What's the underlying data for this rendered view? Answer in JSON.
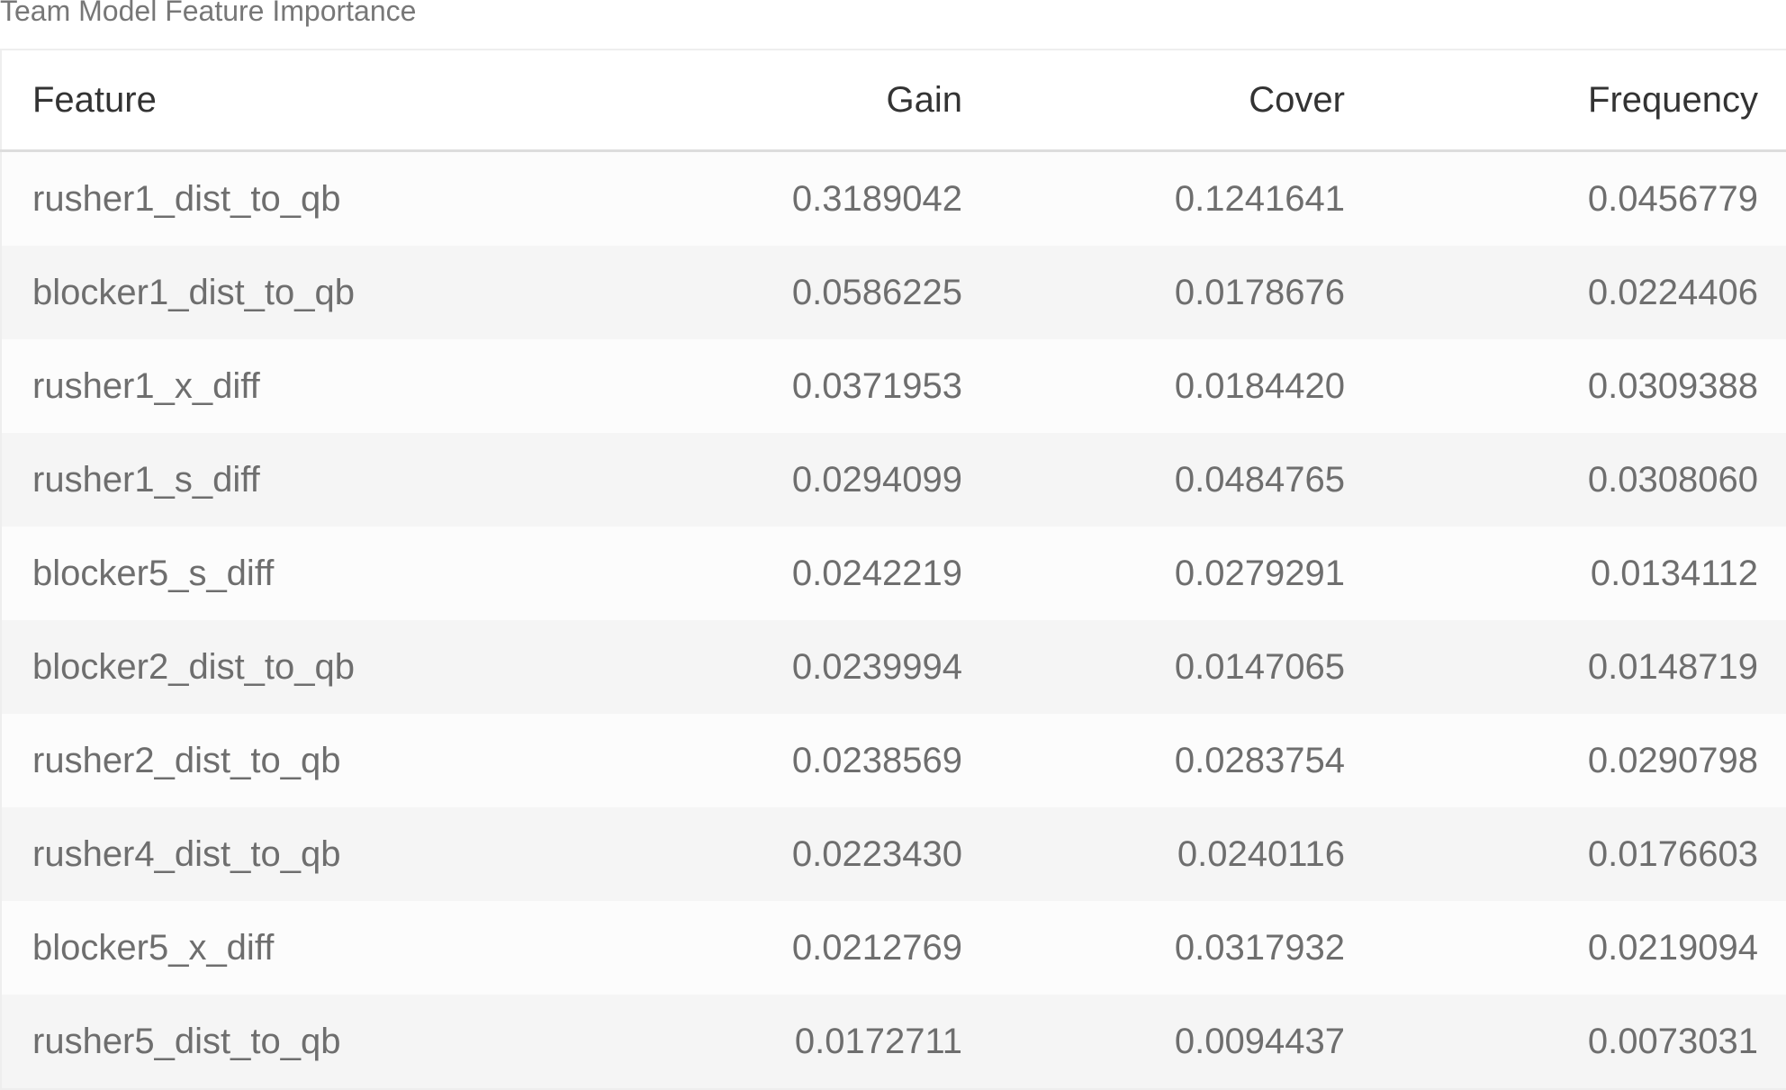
{
  "caption": "Team Model Feature Importance",
  "table": {
    "columns": [
      "Feature",
      "Gain",
      "Cover",
      "Frequency"
    ],
    "rows": [
      [
        "rusher1_dist_to_qb",
        "0.3189042",
        "0.1241641",
        "0.0456779"
      ],
      [
        "blocker1_dist_to_qb",
        "0.0586225",
        "0.0178676",
        "0.0224406"
      ],
      [
        "rusher1_x_diff",
        "0.0371953",
        "0.0184420",
        "0.0309388"
      ],
      [
        "rusher1_s_diff",
        "0.0294099",
        "0.0484765",
        "0.0308060"
      ],
      [
        "blocker5_s_diff",
        "0.0242219",
        "0.0279291",
        "0.0134112"
      ],
      [
        "blocker2_dist_to_qb",
        "0.0239994",
        "0.0147065",
        "0.0148719"
      ],
      [
        "rusher2_dist_to_qb",
        "0.0238569",
        "0.0283754",
        "0.0290798"
      ],
      [
        "rusher4_dist_to_qb",
        "0.0223430",
        "0.0240116",
        "0.0176603"
      ],
      [
        "blocker5_x_diff",
        "0.0212769",
        "0.0317932",
        "0.0219094"
      ],
      [
        "rusher5_dist_to_qb",
        "0.0172711",
        "0.0094437",
        "0.0073031"
      ]
    ]
  }
}
